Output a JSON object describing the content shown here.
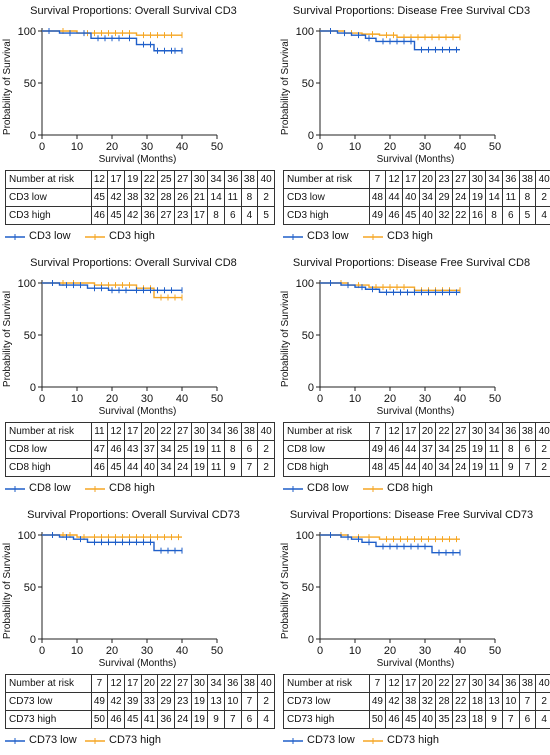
{
  "x_axis_label": "Survival (Months)",
  "y_axis_label": "Probability of Survival",
  "colors": {
    "low": "#1f5fc9",
    "high": "#f5a623"
  },
  "chart_data": [
    {
      "type": "line",
      "title": "Survival Proportions: Overall Survival CD3",
      "xlabel": "Survival (Months)",
      "ylabel": "Probability of Survival",
      "xlim": [
        0,
        50
      ],
      "ylim": [
        0,
        100
      ],
      "x_ticks": [
        "0",
        "10",
        "20",
        "30",
        "40",
        "50"
      ],
      "y_ticks": [
        "0",
        "50",
        "100"
      ],
      "series": [
        {
          "name": "CD3 low",
          "color": "#1f5fc9",
          "steps": [
            [
              0,
              100
            ],
            [
              5,
              98
            ],
            [
              14,
              93
            ],
            [
              27,
              87
            ],
            [
              32,
              81
            ],
            [
              40,
              81
            ]
          ],
          "censor_x": [
            2,
            8,
            12,
            16,
            18,
            20,
            22,
            25,
            29,
            31,
            33,
            35,
            37,
            38,
            40
          ]
        },
        {
          "name": "CD3 high",
          "color": "#f5a623",
          "steps": [
            [
              0,
              100
            ],
            [
              10,
              98
            ],
            [
              27,
              96
            ],
            [
              40,
              96
            ]
          ],
          "censor_x": [
            2,
            6,
            13,
            15,
            17,
            19,
            21,
            23,
            25,
            29,
            31,
            33,
            35,
            37,
            40
          ]
        }
      ],
      "risk_table": {
        "header": "Number at risk",
        "times": [
          "12",
          "17",
          "19",
          "22",
          "25",
          "27",
          "30",
          "34",
          "36",
          "38",
          "40"
        ],
        "rows": [
          {
            "label": "CD3 low",
            "values": [
              "45",
              "42",
              "38",
              "32",
              "28",
              "26",
              "21",
              "14",
              "11",
              "8",
              "2"
            ]
          },
          {
            "label": "CD3 high",
            "values": [
              "46",
              "45",
              "42",
              "36",
              "27",
              "23",
              "17",
              "8",
              "6",
              "4",
              "5"
            ]
          }
        ]
      }
    },
    {
      "type": "line",
      "title": "Survival Proportions: Disease Free Survival CD3",
      "xlabel": "Survival (Months)",
      "ylabel": "Probability of Survival",
      "xlim": [
        0,
        50
      ],
      "ylim": [
        0,
        100
      ],
      "x_ticks": [
        "0",
        "10",
        "20",
        "30",
        "40",
        "50"
      ],
      "y_ticks": [
        "0",
        "50",
        "100"
      ],
      "series": [
        {
          "name": "CD3 low",
          "color": "#1f5fc9",
          "steps": [
            [
              0,
              100
            ],
            [
              5,
              98
            ],
            [
              9,
              96
            ],
            [
              13,
              93
            ],
            [
              16,
              90
            ],
            [
              27,
              82
            ],
            [
              40,
              82
            ]
          ],
          "censor_x": [
            3,
            7,
            11,
            14,
            18,
            20,
            22,
            24,
            26,
            29,
            31,
            33,
            35,
            37,
            39
          ]
        },
        {
          "name": "CD3 high",
          "color": "#f5a623",
          "steps": [
            [
              0,
              100
            ],
            [
              7,
              98
            ],
            [
              12,
              97
            ],
            [
              17,
              96
            ],
            [
              22,
              94
            ],
            [
              40,
              94
            ]
          ],
          "censor_x": [
            3,
            9,
            15,
            19,
            21,
            24,
            26,
            28,
            30,
            32,
            34,
            36,
            38,
            40
          ]
        }
      ],
      "risk_table": {
        "header": "Number at risk",
        "times": [
          "7",
          "12",
          "17",
          "20",
          "23",
          "27",
          "30",
          "34",
          "36",
          "38",
          "40"
        ],
        "rows": [
          {
            "label": "CD3 low",
            "values": [
              "48",
              "44",
              "40",
              "34",
              "29",
              "24",
              "19",
              "14",
              "11",
              "8",
              "2"
            ]
          },
          {
            "label": "CD3 high",
            "values": [
              "49",
              "46",
              "45",
              "40",
              "32",
              "22",
              "16",
              "8",
              "6",
              "5",
              "4"
            ]
          }
        ]
      }
    },
    {
      "type": "line",
      "title": "Survival Proportions: Overall Survival CD8",
      "xlabel": "Survival (Months)",
      "ylabel": "Probability of Survival",
      "xlim": [
        0,
        50
      ],
      "ylim": [
        0,
        100
      ],
      "x_ticks": [
        "0",
        "10",
        "20",
        "30",
        "40",
        "50"
      ],
      "y_ticks": [
        "0",
        "50",
        "100"
      ],
      "series": [
        {
          "name": "CD8 low",
          "color": "#1f5fc9",
          "steps": [
            [
              0,
              100
            ],
            [
              5,
              98
            ],
            [
              13,
              95
            ],
            [
              19,
              93
            ],
            [
              40,
              93
            ]
          ],
          "censor_x": [
            3,
            7,
            9,
            11,
            15,
            17,
            20,
            22,
            24,
            27,
            29,
            31,
            33,
            35,
            37,
            40
          ]
        },
        {
          "name": "CD8 high",
          "color": "#f5a623",
          "steps": [
            [
              0,
              100
            ],
            [
              15,
              98
            ],
            [
              27,
              95
            ],
            [
              32,
              86
            ],
            [
              40,
              86
            ]
          ],
          "censor_x": [
            3,
            6,
            9,
            17,
            19,
            21,
            23,
            25,
            29,
            31,
            34,
            36,
            38,
            40
          ]
        }
      ],
      "risk_table": {
        "header": "Number at risk",
        "times": [
          "11",
          "12",
          "17",
          "20",
          "22",
          "27",
          "30",
          "34",
          "36",
          "38",
          "40"
        ],
        "rows": [
          {
            "label": "CD8 low",
            "values": [
              "47",
              "46",
              "43",
              "37",
              "34",
              "25",
              "19",
              "11",
              "8",
              "6",
              "2"
            ]
          },
          {
            "label": "CD8 high",
            "values": [
              "46",
              "45",
              "44",
              "40",
              "34",
              "24",
              "19",
              "11",
              "9",
              "7",
              "2"
            ]
          }
        ]
      }
    },
    {
      "type": "line",
      "title": "Survival Proportions: Disease Free Survival CD8",
      "xlabel": "Survival (Months)",
      "ylabel": "Probability of Survival",
      "xlim": [
        0,
        50
      ],
      "ylim": [
        0,
        100
      ],
      "x_ticks": [
        "0",
        "10",
        "20",
        "30",
        "40",
        "50"
      ],
      "y_ticks": [
        "0",
        "50",
        "100"
      ],
      "series": [
        {
          "name": "CD8 low",
          "color": "#1f5fc9",
          "steps": [
            [
              0,
              100
            ],
            [
              6,
              98
            ],
            [
              10,
              96
            ],
            [
              13,
              94
            ],
            [
              17,
              91
            ],
            [
              40,
              91
            ]
          ],
          "censor_x": [
            3,
            8,
            12,
            15,
            19,
            21,
            23,
            25,
            27,
            29,
            31,
            33,
            35,
            37,
            39
          ]
        },
        {
          "name": "CD8 high",
          "color": "#f5a623",
          "steps": [
            [
              0,
              100
            ],
            [
              8,
              98
            ],
            [
              14,
              96
            ],
            [
              27,
              93
            ],
            [
              40,
              93
            ]
          ],
          "censor_x": [
            3,
            6,
            11,
            16,
            18,
            20,
            22,
            24,
            29,
            31,
            33,
            35,
            37,
            40
          ]
        }
      ],
      "risk_table": {
        "header": "Number at risk",
        "times": [
          "7",
          "12",
          "17",
          "20",
          "22",
          "27",
          "30",
          "34",
          "36",
          "38",
          "40"
        ],
        "rows": [
          {
            "label": "CD8 low",
            "values": [
              "49",
              "46",
              "44",
              "37",
              "34",
              "25",
              "19",
              "11",
              "8",
              "6",
              "2"
            ]
          },
          {
            "label": "CD8 high",
            "values": [
              "48",
              "45",
              "44",
              "40",
              "34",
              "24",
              "19",
              "11",
              "9",
              "7",
              "2"
            ]
          }
        ]
      }
    },
    {
      "type": "line",
      "title": "Survival Proportions: Overall Survival CD73",
      "xlabel": "Survival (Months)",
      "ylabel": "Probability of Survival",
      "xlim": [
        0,
        50
      ],
      "ylim": [
        0,
        100
      ],
      "x_ticks": [
        "0",
        "10",
        "20",
        "30",
        "40",
        "50"
      ],
      "y_ticks": [
        "0",
        "50",
        "100"
      ],
      "series": [
        {
          "name": "CD73 low",
          "color": "#1f5fc9",
          "steps": [
            [
              0,
              100
            ],
            [
              5,
              98
            ],
            [
              9,
              96
            ],
            [
              13,
              93
            ],
            [
              32,
              85
            ],
            [
              40,
              85
            ]
          ],
          "censor_x": [
            3,
            7,
            11,
            15,
            17,
            19,
            21,
            23,
            25,
            27,
            29,
            31,
            34,
            36,
            38,
            40
          ]
        },
        {
          "name": "CD73 high",
          "color": "#f5a623",
          "steps": [
            [
              0,
              100
            ],
            [
              10,
              98
            ],
            [
              40,
              98
            ]
          ],
          "censor_x": [
            3,
            6,
            8,
            12,
            15,
            17,
            19,
            21,
            23,
            25,
            27,
            29,
            31,
            33,
            35,
            37,
            39
          ]
        }
      ],
      "risk_table": {
        "header": "Number at risk",
        "times": [
          "7",
          "12",
          "17",
          "20",
          "22",
          "27",
          "30",
          "34",
          "36",
          "38",
          "40"
        ],
        "rows": [
          {
            "label": "CD73 low",
            "values": [
              "49",
              "42",
              "39",
              "33",
              "29",
              "23",
              "19",
              "13",
              "10",
              "7",
              "2"
            ]
          },
          {
            "label": "CD73 high",
            "values": [
              "50",
              "46",
              "45",
              "41",
              "36",
              "24",
              "19",
              "9",
              "7",
              "6",
              "4"
            ]
          }
        ]
      }
    },
    {
      "type": "line",
      "title": "Survival Proportions: Disease Free Survival CD73",
      "xlabel": "Survival (Months)",
      "ylabel": "Probability of Survival",
      "xlim": [
        0,
        50
      ],
      "ylim": [
        0,
        100
      ],
      "x_ticks": [
        "0",
        "10",
        "20",
        "30",
        "40",
        "50"
      ],
      "y_ticks": [
        "0",
        "50",
        "100"
      ],
      "series": [
        {
          "name": "CD73 low",
          "color": "#1f5fc9",
          "steps": [
            [
              0,
              100
            ],
            [
              6,
              98
            ],
            [
              9,
              96
            ],
            [
              12,
              93
            ],
            [
              16,
              89
            ],
            [
              32,
              83
            ],
            [
              40,
              83
            ]
          ],
          "censor_x": [
            3,
            8,
            11,
            14,
            18,
            20,
            22,
            24,
            26,
            28,
            30,
            34,
            36,
            38,
            40
          ]
        },
        {
          "name": "CD73 high",
          "color": "#f5a623",
          "steps": [
            [
              0,
              100
            ],
            [
              8,
              98
            ],
            [
              17,
              96
            ],
            [
              40,
              96
            ]
          ],
          "censor_x": [
            3,
            6,
            11,
            14,
            19,
            21,
            23,
            25,
            27,
            29,
            31,
            33,
            35,
            37,
            39
          ]
        }
      ],
      "risk_table": {
        "header": "Number at risk",
        "times": [
          "7",
          "12",
          "17",
          "20",
          "22",
          "27",
          "30",
          "34",
          "36",
          "38",
          "40"
        ],
        "rows": [
          {
            "label": "CD73 low",
            "values": [
              "49",
              "42",
              "38",
              "32",
              "28",
              "22",
              "18",
              "13",
              "10",
              "7",
              "2"
            ]
          },
          {
            "label": "CD73 high",
            "values": [
              "50",
              "46",
              "45",
              "40",
              "35",
              "23",
              "18",
              "9",
              "7",
              "6",
              "4"
            ]
          }
        ]
      }
    }
  ]
}
